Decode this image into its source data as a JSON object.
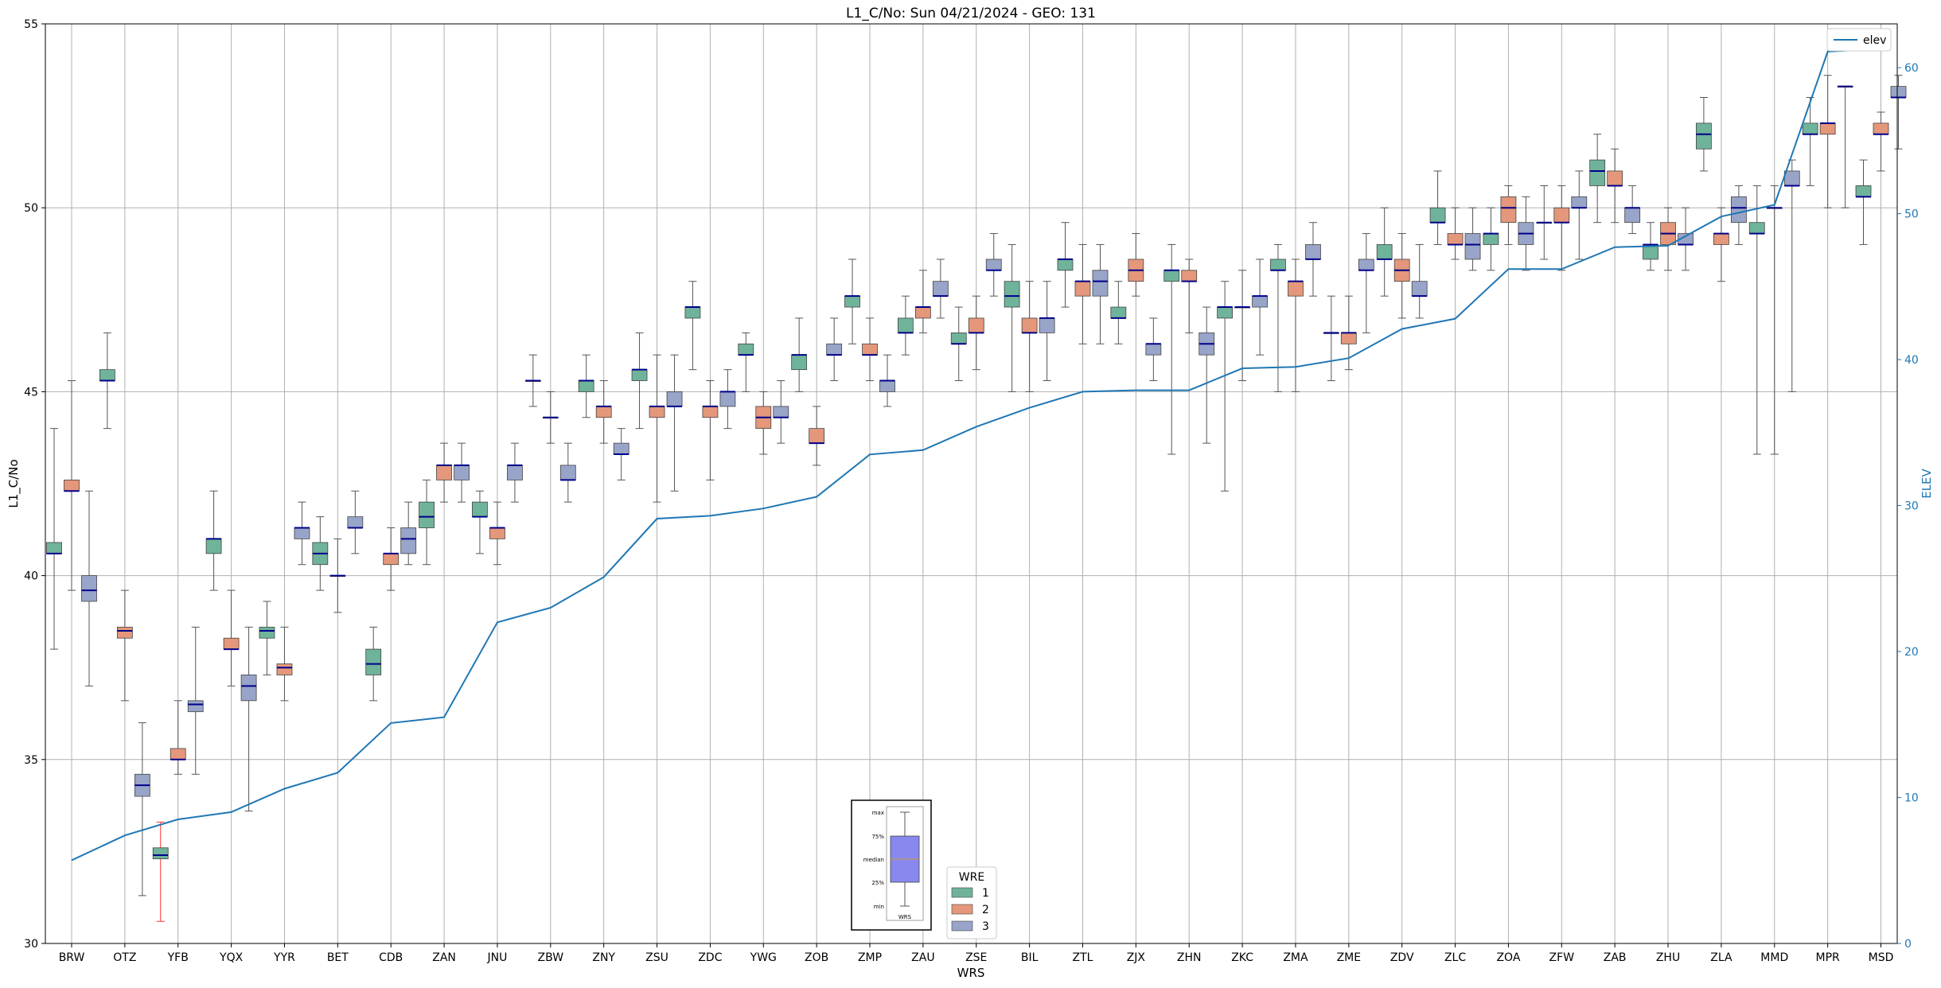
{
  "chart_data": {
    "type": "box",
    "title": "L1_C/No: Sun 04/21/2024 - GEO: 131",
    "xlabel": "WRS",
    "ylabel": "L1_C/No",
    "y2label": "ELEV",
    "ylim": [
      30,
      55
    ],
    "y2lim": [
      0,
      63
    ],
    "yticks": [
      "30",
      "35",
      "40",
      "45",
      "50",
      "55"
    ],
    "y2ticks": [
      "0",
      "10",
      "20",
      "30",
      "40",
      "50",
      "60"
    ],
    "grid": true,
    "colors": {
      "1": "#6fb39a",
      "2": "#e4977a",
      "3": "#98a4c8",
      "median": "#00008b",
      "elev": "#1f77b4",
      "outlier_whisker": "#ff3333"
    },
    "categories": [
      "BRW",
      "OTZ",
      "YFB",
      "YQX",
      "YYR",
      "BET",
      "CDB",
      "ZAN",
      "JNU",
      "ZBW",
      "ZNY",
      "ZSU",
      "ZDC",
      "YWG",
      "ZOB",
      "ZMP",
      "ZAU",
      "ZSE",
      "BIL",
      "ZTL",
      "ZJX",
      "ZHN",
      "ZKC",
      "ZMA",
      "ZME",
      "ZDV",
      "ZLC",
      "ZOA",
      "ZFW",
      "ZAB",
      "ZHU",
      "ZLA",
      "MMD",
      "MPR",
      "MSD"
    ],
    "legend_wre": {
      "title": "WRE",
      "labels": [
        "1",
        "2",
        "3"
      ],
      "placement": "bottom-center"
    },
    "legend_line": {
      "label": "elev",
      "placement": "top-right"
    },
    "key_box": {
      "labels": [
        "max",
        "75%",
        "median",
        "25%",
        "min"
      ],
      "xlabel": "WRS"
    },
    "elev": [
      5.7,
      7.4,
      8.5,
      9.0,
      10.6,
      11.7,
      15.1,
      15.5,
      22.0,
      23.0,
      25.1,
      29.1,
      29.3,
      29.8,
      30.6,
      33.5,
      33.8,
      35.4,
      36.7,
      37.8,
      37.9,
      37.9,
      39.4,
      39.5,
      40.1,
      42.1,
      42.8,
      46.2,
      46.2,
      47.7,
      47.8,
      49.8,
      50.6,
      61.1,
      61.3
    ],
    "series": [
      {
        "name": "1",
        "boxes": [
          [
            0,
            38.0,
            40.6,
            40.6,
            40.9,
            44.0
          ],
          [
            1,
            44.0,
            45.3,
            45.3,
            45.6,
            46.6
          ],
          [
            2,
            30.6,
            32.3,
            32.4,
            32.6,
            33.3
          ],
          [
            3,
            39.6,
            40.6,
            41.0,
            41.0,
            42.3
          ],
          [
            4,
            37.3,
            38.3,
            38.5,
            38.6,
            39.3
          ],
          [
            5,
            39.6,
            40.3,
            40.6,
            40.9,
            41.6
          ],
          [
            6,
            36.6,
            37.3,
            37.6,
            38.0,
            38.6
          ],
          [
            7,
            40.3,
            41.3,
            41.6,
            42.0,
            42.6
          ],
          [
            8,
            40.6,
            41.6,
            41.6,
            42.0,
            42.3
          ],
          [
            9,
            44.6,
            45.3,
            45.3,
            45.3,
            46.0
          ],
          [
            10,
            44.3,
            45.0,
            45.3,
            45.3,
            46.0
          ],
          [
            11,
            44.0,
            45.3,
            45.6,
            45.6,
            46.6
          ],
          [
            12,
            45.6,
            47.0,
            47.3,
            47.3,
            48.0
          ],
          [
            13,
            45.0,
            46.0,
            46.0,
            46.3,
            46.6
          ],
          [
            14,
            45.0,
            45.6,
            46.0,
            46.0,
            47.0
          ],
          [
            15,
            46.3,
            47.3,
            47.6,
            47.6,
            48.6
          ],
          [
            16,
            46.0,
            46.6,
            46.6,
            47.0,
            47.6
          ],
          [
            17,
            45.3,
            46.3,
            46.3,
            46.6,
            47.3
          ],
          [
            18,
            45.0,
            47.3,
            47.6,
            48.0,
            49.0
          ],
          [
            19,
            47.3,
            48.3,
            48.6,
            48.6,
            49.6
          ],
          [
            20,
            46.3,
            47.0,
            47.0,
            47.3,
            48.0
          ],
          [
            21,
            43.3,
            48.0,
            48.3,
            48.3,
            49.0
          ],
          [
            22,
            42.3,
            47.0,
            47.3,
            47.3,
            48.0
          ],
          [
            23,
            45.0,
            48.3,
            48.3,
            48.6,
            49.0
          ],
          [
            24,
            45.3,
            46.6,
            46.6,
            46.6,
            47.6
          ],
          [
            25,
            47.6,
            48.6,
            48.6,
            49.0,
            50.0
          ],
          [
            26,
            49.0,
            49.6,
            49.6,
            50.0,
            51.0
          ],
          [
            27,
            48.3,
            49.0,
            49.3,
            49.3,
            50.0
          ],
          [
            28,
            48.6,
            49.6,
            49.6,
            49.6,
            50.6
          ],
          [
            29,
            49.6,
            50.6,
            51.0,
            51.3,
            52.0
          ],
          [
            30,
            48.3,
            48.6,
            49.0,
            49.0,
            49.6
          ],
          [
            31,
            51.0,
            51.6,
            52.0,
            52.3,
            53.0
          ],
          [
            32,
            43.3,
            49.3,
            49.3,
            49.6,
            50.6
          ],
          [
            33,
            50.6,
            52.0,
            52.0,
            52.3,
            53.0
          ],
          [
            34,
            49.0,
            50.3,
            50.3,
            50.6,
            51.3
          ]
        ]
      },
      {
        "name": "2",
        "boxes": [
          [
            0,
            39.6,
            42.3,
            42.3,
            42.6,
            45.3
          ],
          [
            1,
            36.6,
            38.3,
            38.5,
            38.6,
            39.6
          ],
          [
            2,
            34.6,
            35.0,
            35.0,
            35.3,
            36.6
          ],
          [
            3,
            37.0,
            38.0,
            38.0,
            38.3,
            39.6
          ],
          [
            4,
            36.6,
            37.3,
            37.5,
            37.6,
            38.6
          ],
          [
            5,
            39.0,
            40.0,
            40.0,
            40.0,
            41.0
          ],
          [
            6,
            39.6,
            40.3,
            40.6,
            40.6,
            41.3
          ],
          [
            7,
            42.0,
            42.6,
            43.0,
            43.0,
            43.6
          ],
          [
            8,
            40.3,
            41.0,
            41.3,
            41.3,
            42.0
          ],
          [
            9,
            43.6,
            44.3,
            44.3,
            44.3,
            45.0
          ],
          [
            10,
            43.6,
            44.3,
            44.6,
            44.6,
            45.3
          ],
          [
            11,
            42.0,
            44.3,
            44.6,
            44.6,
            46.0
          ],
          [
            12,
            42.6,
            44.3,
            44.6,
            44.6,
            45.3
          ],
          [
            13,
            43.3,
            44.0,
            44.3,
            44.6,
            45.0
          ],
          [
            14,
            43.0,
            43.6,
            43.6,
            44.0,
            44.6
          ],
          [
            15,
            45.3,
            46.0,
            46.0,
            46.3,
            47.0
          ],
          [
            16,
            46.6,
            47.0,
            47.3,
            47.3,
            48.3
          ],
          [
            17,
            45.6,
            46.6,
            46.6,
            47.0,
            47.6
          ],
          [
            18,
            45.0,
            46.6,
            46.6,
            47.0,
            48.0
          ],
          [
            19,
            46.3,
            47.6,
            48.0,
            48.0,
            49.0
          ],
          [
            20,
            47.6,
            48.0,
            48.3,
            48.6,
            49.3
          ],
          [
            21,
            46.6,
            48.0,
            48.0,
            48.3,
            48.6
          ],
          [
            22,
            45.3,
            47.3,
            47.3,
            47.3,
            48.3
          ],
          [
            23,
            45.0,
            47.6,
            48.0,
            48.0,
            48.6
          ],
          [
            24,
            45.6,
            46.3,
            46.6,
            46.6,
            47.6
          ],
          [
            25,
            47.0,
            48.0,
            48.3,
            48.6,
            49.3
          ],
          [
            26,
            48.6,
            49.0,
            49.0,
            49.3,
            50.0
          ],
          [
            27,
            49.0,
            49.6,
            50.0,
            50.3,
            50.6
          ],
          [
            28,
            48.3,
            49.6,
            49.6,
            50.0,
            50.6
          ],
          [
            29,
            49.6,
            50.6,
            50.6,
            51.0,
            51.6
          ],
          [
            30,
            48.3,
            49.0,
            49.3,
            49.6,
            50.0
          ],
          [
            31,
            48.0,
            49.0,
            49.3,
            49.3,
            50.0
          ],
          [
            32,
            43.3,
            50.0,
            50.0,
            50.0,
            50.6
          ],
          [
            33,
            50.0,
            52.0,
            52.3,
            52.3,
            53.6
          ],
          [
            34,
            51.0,
            52.0,
            52.0,
            52.3,
            52.6
          ]
        ]
      },
      {
        "name": "3",
        "boxes": [
          [
            0,
            37.0,
            39.3,
            39.6,
            40.0,
            42.3
          ],
          [
            1,
            31.3,
            34.0,
            34.3,
            34.6,
            36.0
          ],
          [
            2,
            34.6,
            36.3,
            36.5,
            36.6,
            38.6
          ],
          [
            3,
            33.6,
            36.6,
            37.0,
            37.3,
            38.6
          ],
          [
            4,
            40.3,
            41.0,
            41.3,
            41.3,
            42.0
          ],
          [
            5,
            40.6,
            41.3,
            41.3,
            41.6,
            42.3
          ],
          [
            6,
            40.3,
            40.6,
            41.0,
            41.3,
            42.0
          ],
          [
            7,
            42.0,
            42.6,
            43.0,
            43.0,
            43.6
          ],
          [
            8,
            42.0,
            42.6,
            43.0,
            43.0,
            43.6
          ],
          [
            9,
            42.0,
            42.6,
            42.6,
            43.0,
            43.6
          ],
          [
            10,
            42.6,
            43.3,
            43.3,
            43.6,
            44.0
          ],
          [
            11,
            42.3,
            44.6,
            44.6,
            45.0,
            46.0
          ],
          [
            12,
            44.0,
            44.6,
            45.0,
            45.0,
            45.6
          ],
          [
            13,
            43.6,
            44.3,
            44.3,
            44.6,
            45.3
          ],
          [
            14,
            45.3,
            46.0,
            46.0,
            46.3,
            47.0
          ],
          [
            15,
            44.6,
            45.0,
            45.3,
            45.3,
            46.0
          ],
          [
            16,
            47.0,
            47.6,
            47.6,
            48.0,
            48.6
          ],
          [
            17,
            47.6,
            48.3,
            48.3,
            48.6,
            49.3
          ],
          [
            18,
            45.3,
            46.6,
            47.0,
            47.0,
            48.0
          ],
          [
            19,
            46.3,
            47.6,
            48.0,
            48.3,
            49.0
          ],
          [
            20,
            45.3,
            46.0,
            46.3,
            46.3,
            47.0
          ],
          [
            21,
            43.6,
            46.0,
            46.3,
            46.6,
            47.3
          ],
          [
            22,
            46.0,
            47.3,
            47.6,
            47.6,
            48.6
          ],
          [
            23,
            47.6,
            48.6,
            48.6,
            49.0,
            49.6
          ],
          [
            24,
            46.6,
            48.3,
            48.3,
            48.6,
            49.3
          ],
          [
            25,
            47.0,
            47.6,
            47.6,
            48.0,
            49.0
          ],
          [
            26,
            48.3,
            48.6,
            49.0,
            49.3,
            50.0
          ],
          [
            27,
            48.3,
            49.0,
            49.3,
            49.6,
            50.3
          ],
          [
            28,
            48.6,
            50.0,
            50.0,
            50.3,
            51.0
          ],
          [
            29,
            49.3,
            49.6,
            50.0,
            50.0,
            50.6
          ],
          [
            30,
            48.3,
            49.0,
            49.0,
            49.3,
            50.0
          ],
          [
            31,
            49.0,
            49.6,
            50.0,
            50.3,
            50.6
          ],
          [
            32,
            45.0,
            50.6,
            50.6,
            51.0,
            51.3
          ],
          [
            33,
            50.0,
            53.3,
            53.3,
            53.3,
            53.3
          ],
          [
            34,
            51.6,
            53.0,
            53.0,
            53.3,
            53.6
          ]
        ]
      }
    ]
  }
}
